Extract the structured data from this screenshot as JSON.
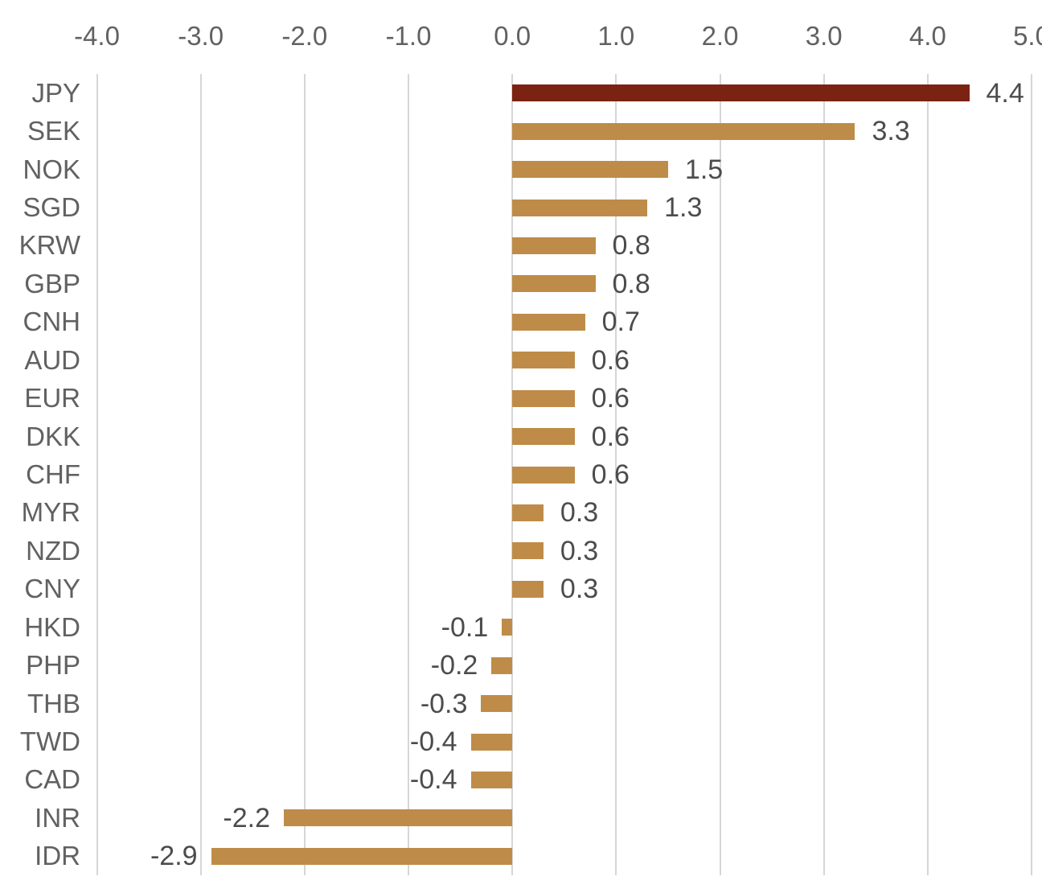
{
  "chart_data": {
    "type": "bar",
    "orientation": "horizontal",
    "title": "",
    "categories": [
      "JPY",
      "SEK",
      "NOK",
      "SGD",
      "KRW",
      "GBP",
      "CNH",
      "AUD",
      "EUR",
      "DKK",
      "CHF",
      "MYR",
      "NZD",
      "CNY",
      "HKD",
      "PHP",
      "THB",
      "TWD",
      "CAD",
      "INR",
      "IDR"
    ],
    "values": [
      4.4,
      3.3,
      1.5,
      1.3,
      0.8,
      0.8,
      0.7,
      0.6,
      0.6,
      0.6,
      0.6,
      0.3,
      0.3,
      0.3,
      -0.1,
      -0.2,
      -0.3,
      -0.4,
      -0.4,
      -2.2,
      -2.9
    ],
    "value_labels": [
      "4.4",
      "3.3",
      "1.5",
      "1.3",
      "0.8",
      "0.8",
      "0.7",
      "0.6",
      "0.6",
      "0.6",
      "0.6",
      "0.3",
      "0.3",
      "0.3",
      "-0.1",
      "-0.2",
      "-0.3",
      "-0.4",
      "-0.4",
      "-2.2",
      "-2.9"
    ],
    "highlighted_category": "JPY",
    "x_axis": {
      "position": "top",
      "min": -4.0,
      "max": 5.0,
      "tick_values": [
        -4,
        -3,
        -2,
        -1,
        0,
        1,
        2,
        3,
        4,
        5
      ],
      "tick_labels": [
        "-4.0",
        "-3.0",
        "-2.0",
        "-1.0",
        "0.0",
        "1.0",
        "2.0",
        "3.0",
        "4.0",
        "5.0"
      ]
    },
    "grid": true,
    "legend": "none",
    "colors": {
      "bar": "#BE8C48",
      "bar_highlight": "#7B2212",
      "gridline": "#D6D6D6",
      "axis_text": "#616161",
      "category_text": "#616161",
      "value_text": "#4C4C4C",
      "background": "#FFFFFF"
    }
  }
}
